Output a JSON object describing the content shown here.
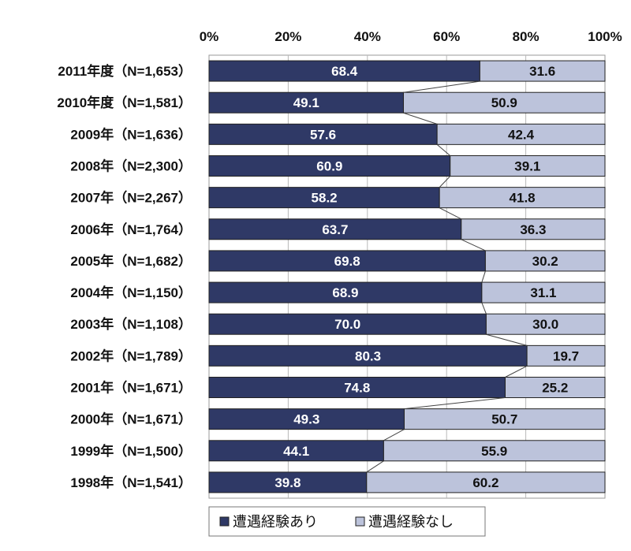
{
  "chart_data": {
    "type": "bar",
    "orientation": "horizontal",
    "stacked": true,
    "title": "",
    "xlabel": "",
    "ylabel": "",
    "xlim": [
      0,
      100
    ],
    "x_ticks": [
      "0%",
      "20%",
      "40%",
      "60%",
      "80%",
      "100%"
    ],
    "categories": [
      "2011年度（N=1,653）",
      "2010年度（N=1,581）",
      "2009年（N=1,636）",
      "2008年（N=2,300）",
      "2007年（N=2,267）",
      "2006年（N=1,764）",
      "2005年（N=1,682）",
      "2004年（N=1,150）",
      "2003年（N=1,108）",
      "2002年（N=1,789）",
      "2001年（N=1,671）",
      "2000年（N=1,671）",
      "1999年（N=1,500）",
      "1998年（N=1,541）"
    ],
    "series": [
      {
        "name": "遭遇経験あり",
        "color": "#2f3966",
        "values": [
          68.4,
          49.1,
          57.6,
          60.9,
          58.2,
          63.7,
          69.8,
          68.9,
          70.0,
          80.3,
          74.8,
          49.3,
          44.1,
          39.8
        ],
        "labels": [
          "68.4",
          "49.1",
          "57.6",
          "60.9",
          "58.2",
          "63.7",
          "69.8",
          "68.9",
          "70.0",
          "80.3",
          "74.8",
          "49.3",
          "44.1",
          "39.8"
        ]
      },
      {
        "name": "遭遇経験なし",
        "color": "#bcc3db",
        "values": [
          31.6,
          50.9,
          42.4,
          39.1,
          41.8,
          36.3,
          30.2,
          31.1,
          30.0,
          19.7,
          25.2,
          50.7,
          55.9,
          60.2
        ],
        "labels": [
          "31.6",
          "50.9",
          "42.4",
          "39.1",
          "41.8",
          "36.3",
          "30.2",
          "31.1",
          "30.0",
          "19.7",
          "25.2",
          "50.7",
          "55.9",
          "60.2"
        ]
      }
    ],
    "series_lines": true,
    "grid": true,
    "legend": {
      "position": "bottom",
      "items": [
        "遭遇経験あり",
        "遭遇経験なし"
      ]
    }
  }
}
